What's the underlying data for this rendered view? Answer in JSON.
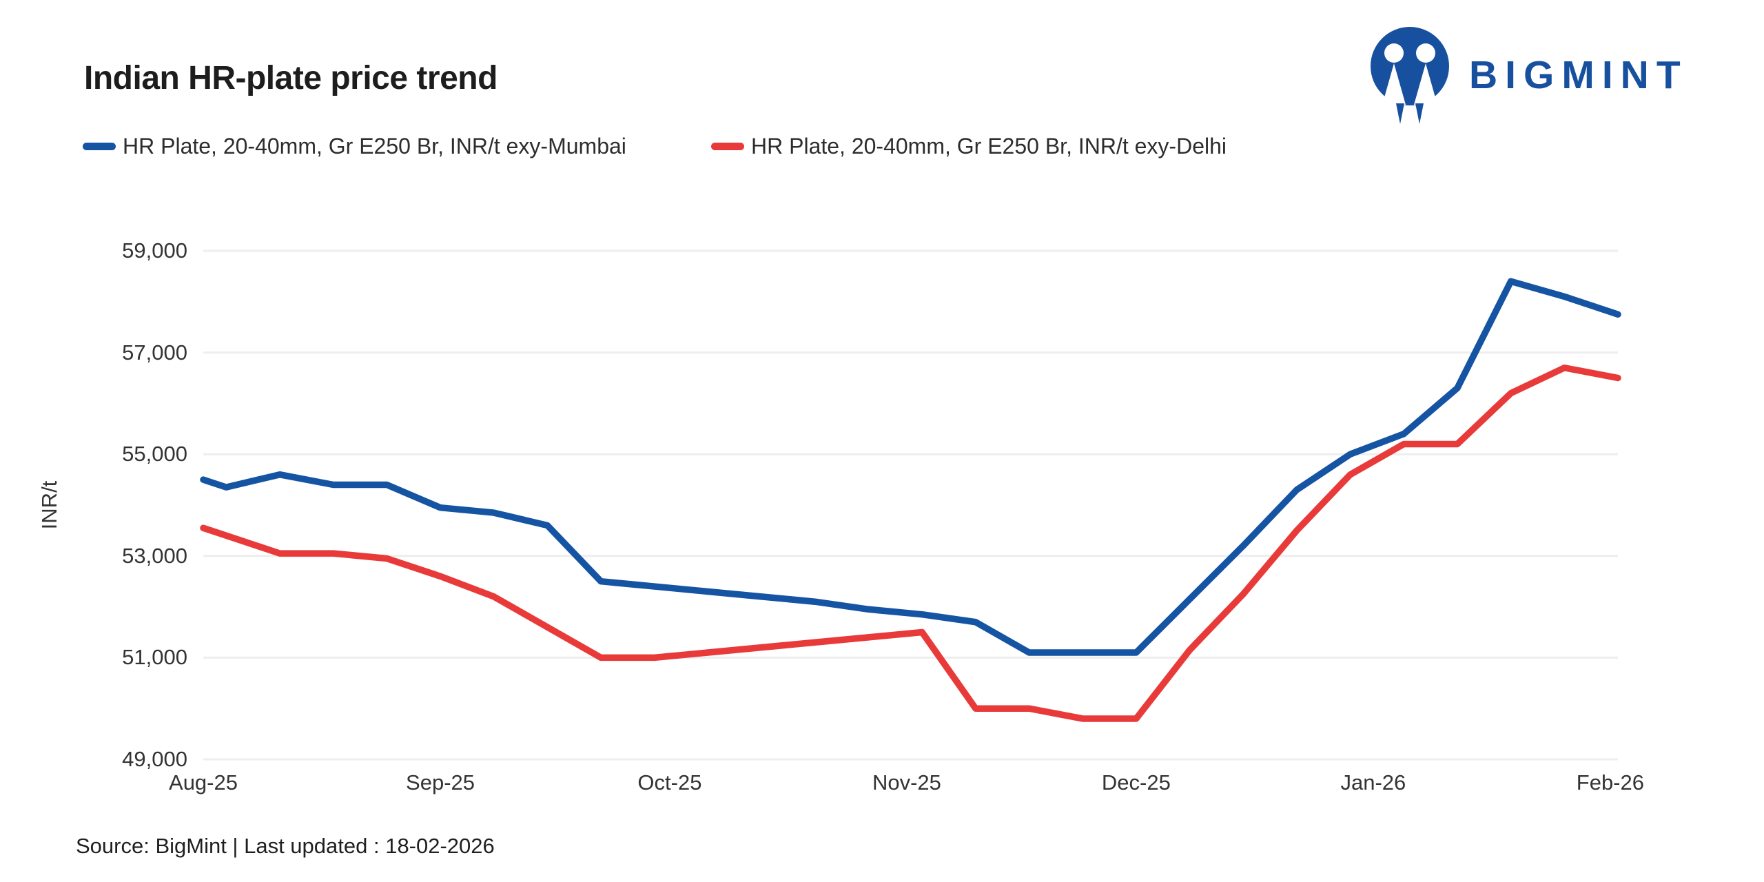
{
  "page": {
    "title": "Indian HR-plate price trend",
    "source_note": "Source: BigMint | Last updated : 18-02-2026"
  },
  "logo": {
    "text": "BIGMINT",
    "color": "#17509f"
  },
  "colors": {
    "mumbai_line": "#1553a3",
    "delhi_line": "#e93a3a",
    "gridline": "#eeeeee",
    "tick_text": "#333333",
    "title_text": "#1d1d1d"
  },
  "chart_data": {
    "type": "line",
    "title": "Indian HR-plate price trend",
    "xlabel": "",
    "ylabel": "INR/t",
    "ylim": [
      49000,
      59000
    ],
    "yticks": [
      49000,
      51000,
      53000,
      55000,
      57000,
      59000
    ],
    "ytick_labels": [
      "49,000",
      "51,000",
      "53,000",
      "55,000",
      "57,000",
      "59,000"
    ],
    "grid": "horizontal",
    "legend_position": "top-left",
    "x_unit": "days-from-first-point",
    "x": [
      0,
      3,
      10,
      17,
      24,
      31,
      38,
      45,
      52,
      59,
      66,
      73,
      80,
      87,
      94,
      101,
      108,
      115,
      122,
      129,
      136,
      143,
      150,
      157,
      164,
      171,
      178,
      185
    ],
    "xticks": [
      {
        "label": "Aug-25",
        "day": 0
      },
      {
        "label": "Sep-25",
        "day": 31
      },
      {
        "label": "Oct-25",
        "day": 61
      },
      {
        "label": "Nov-25",
        "day": 92
      },
      {
        "label": "Dec-25",
        "day": 122
      },
      {
        "label": "Jan-26",
        "day": 153
      },
      {
        "label": "Feb-26",
        "day": 184
      }
    ],
    "series": [
      {
        "name": "HR Plate, 20-40mm, Gr E250 Br, INR/t exy-Mumbai",
        "color": "#1553a3",
        "values": [
          54500,
          54350,
          54600,
          54400,
          54400,
          53950,
          53850,
          53600,
          52500,
          52400,
          52300,
          52200,
          52100,
          51950,
          51850,
          51700,
          51100,
          51100,
          51100,
          52150,
          53200,
          54300,
          55000,
          55400,
          56300,
          58400,
          58100,
          57750
        ]
      },
      {
        "name": "HR Plate, 20-40mm, Gr E250 Br, INR/t exy-Delhi",
        "color": "#e93a3a",
        "values": [
          53550,
          53400,
          53050,
          53050,
          52950,
          52600,
          52200,
          51600,
          51000,
          51000,
          51100,
          51200,
          51300,
          51400,
          51500,
          50000,
          50000,
          49800,
          49800,
          51150,
          52250,
          53500,
          54600,
          55200,
          55200,
          56200,
          56700,
          56500
        ]
      }
    ]
  }
}
